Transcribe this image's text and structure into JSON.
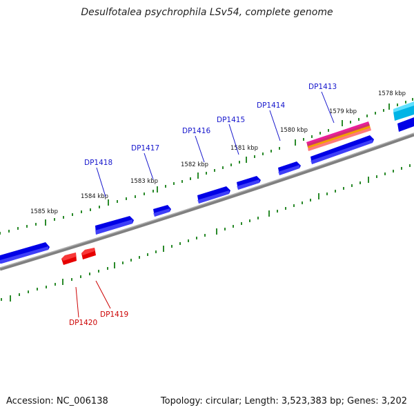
{
  "title": "Desulfotalea psychrophila LSv54, complete genome",
  "footer": {
    "accession": "Accession: NC_006138",
    "stats": "Topology: circular; Length: 3,523,383 bp; Genes: 3,202"
  },
  "colors": {
    "forward_gene": "#0000ee",
    "reverse_gene": "#ee0000",
    "backbone": "#808080",
    "tick": "#2a8a2a",
    "rna_gene": "#e8209a",
    "cyan_gene": "#00b4e6"
  },
  "kbp_labels": [
    "1578 kbp",
    "1579 kbp",
    "1580 kbp",
    "1581 kbp",
    "1582 kbp",
    "1583 kbp",
    "1584 kbp",
    "1585 kbp"
  ],
  "forward_genes": [
    "DP1418",
    "DP1417",
    "DP1416",
    "DP1415",
    "DP1414",
    "DP1413"
  ],
  "reverse_genes": [
    "DP1420",
    "DP1419"
  ]
}
